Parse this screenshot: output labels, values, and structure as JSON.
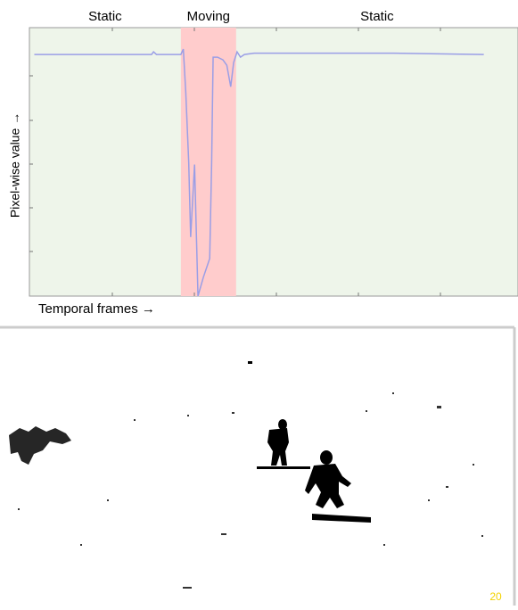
{
  "chart_data": {
    "type": "line",
    "xlabel": "Temporal frames →",
    "ylabel": "Pixel-wise value →",
    "xlim": [
      0,
      100
    ],
    "ylim": [
      0,
      1
    ],
    "background": "#eef5ea",
    "regions": [
      {
        "label": "Static",
        "x": [
          0,
          31
        ]
      },
      {
        "label": "Moving",
        "x": [
          31,
          42.3
        ],
        "color": "#ffcccc"
      },
      {
        "label": "Static",
        "x": [
          42.3,
          100
        ]
      }
    ],
    "series": [
      {
        "color": "#9a9ee6",
        "x": [
          1,
          25,
          25.4,
          26,
          31,
          31.5,
          32,
          32.6,
          33,
          33.8,
          34.5,
          35.6,
          36.9,
          37.3,
          37.6,
          38.5,
          39.6,
          40.4,
          41.2,
          41.8,
          42.5,
          43.2,
          44,
          46,
          53.3,
          74.5,
          93
        ],
        "values": [
          0.9,
          0.9,
          0.91,
          0.9,
          0.9,
          0.92,
          0.76,
          0.5,
          0.22,
          0.49,
          0.0,
          0.07,
          0.14,
          0.5,
          0.89,
          0.89,
          0.88,
          0.86,
          0.78,
          0.87,
          0.91,
          0.89,
          0.9,
          0.905,
          0.905,
          0.905,
          0.9
        ]
      }
    ]
  },
  "image": {
    "frame_label": "20"
  }
}
